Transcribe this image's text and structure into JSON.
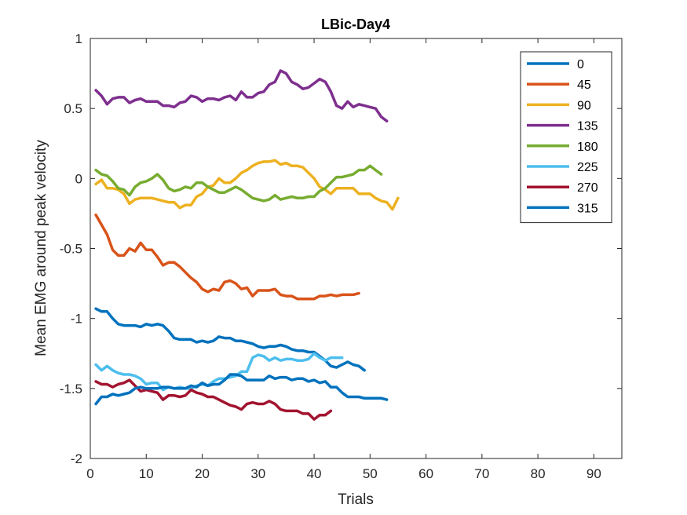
{
  "chart_data": {
    "type": "line",
    "title": "LBic-Day4",
    "xlabel": "Trials",
    "ylabel": "Mean EMG around peak velocity",
    "xlim": [
      0,
      95
    ],
    "ylim": [
      -2,
      1
    ],
    "xticks": [
      0,
      10,
      20,
      30,
      40,
      50,
      60,
      70,
      80,
      90
    ],
    "yticks": [
      -2,
      -1.5,
      -1,
      -0.5,
      0,
      0.5,
      1
    ],
    "grid": false,
    "legend_position": "top-right",
    "series": [
      {
        "name": "0",
        "color": "#0072BD",
        "x": [
          1,
          2,
          3,
          4,
          5,
          6,
          7,
          8,
          9,
          10,
          11,
          12,
          13,
          14,
          15,
          16,
          17,
          18,
          19,
          20,
          21,
          22,
          23,
          24,
          25,
          26,
          27,
          28,
          29,
          30,
          31,
          32,
          33,
          34,
          35,
          36,
          37,
          38,
          39,
          40,
          41,
          42,
          43,
          44,
          45,
          46,
          47,
          48,
          49
        ],
        "y": [
          -0.93,
          -0.95,
          -0.95,
          -1.0,
          -1.04,
          -1.05,
          -1.05,
          -1.05,
          -1.06,
          -1.04,
          -1.05,
          -1.04,
          -1.05,
          -1.09,
          -1.14,
          -1.15,
          -1.15,
          -1.15,
          -1.17,
          -1.16,
          -1.17,
          -1.16,
          -1.13,
          -1.14,
          -1.14,
          -1.16,
          -1.16,
          -1.17,
          -1.18,
          -1.2,
          -1.21,
          -1.2,
          -1.2,
          -1.19,
          -1.2,
          -1.22,
          -1.23,
          -1.23,
          -1.24,
          -1.24,
          -1.27,
          -1.3,
          -1.34,
          -1.35,
          -1.33,
          -1.31,
          -1.33,
          -1.34,
          -1.37
        ]
      },
      {
        "name": "45",
        "color": "#D95319",
        "x": [
          1,
          2,
          3,
          4,
          5,
          6,
          7,
          8,
          9,
          10,
          11,
          12,
          13,
          14,
          15,
          16,
          17,
          18,
          19,
          20,
          21,
          22,
          23,
          24,
          25,
          26,
          27,
          28,
          29,
          30,
          31,
          32,
          33,
          34,
          35,
          36,
          37,
          38,
          39,
          40,
          41,
          42,
          43,
          44,
          45,
          46,
          47,
          48
        ],
        "y": [
          -0.26,
          -0.33,
          -0.4,
          -0.51,
          -0.55,
          -0.55,
          -0.5,
          -0.52,
          -0.46,
          -0.51,
          -0.51,
          -0.56,
          -0.62,
          -0.6,
          -0.6,
          -0.63,
          -0.67,
          -0.71,
          -0.74,
          -0.79,
          -0.81,
          -0.79,
          -0.8,
          -0.74,
          -0.73,
          -0.75,
          -0.79,
          -0.78,
          -0.84,
          -0.8,
          -0.8,
          -0.8,
          -0.79,
          -0.83,
          -0.84,
          -0.84,
          -0.86,
          -0.86,
          -0.86,
          -0.86,
          -0.84,
          -0.84,
          -0.83,
          -0.84,
          -0.83,
          -0.83,
          -0.83,
          -0.82
        ]
      },
      {
        "name": "90",
        "color": "#EDB120",
        "x": [
          1,
          2,
          3,
          4,
          5,
          6,
          7,
          8,
          9,
          10,
          11,
          12,
          13,
          14,
          15,
          16,
          17,
          18,
          19,
          20,
          21,
          22,
          23,
          24,
          25,
          26,
          27,
          28,
          29,
          30,
          31,
          32,
          33,
          34,
          35,
          36,
          37,
          38,
          39,
          40,
          41,
          42,
          43,
          44,
          45,
          46,
          47,
          48,
          49,
          50,
          51,
          52,
          53,
          54,
          55
        ],
        "y": [
          -0.04,
          -0.01,
          -0.07,
          -0.07,
          -0.08,
          -0.11,
          -0.18,
          -0.15,
          -0.14,
          -0.14,
          -0.14,
          -0.15,
          -0.16,
          -0.17,
          -0.17,
          -0.21,
          -0.19,
          -0.19,
          -0.13,
          -0.11,
          -0.06,
          -0.05,
          0.0,
          -0.03,
          -0.03,
          0.0,
          0.04,
          0.06,
          0.09,
          0.11,
          0.12,
          0.12,
          0.13,
          0.1,
          0.11,
          0.09,
          0.09,
          0.08,
          0.04,
          0.0,
          -0.06,
          -0.08,
          -0.11,
          -0.07,
          -0.07,
          -0.07,
          -0.07,
          -0.11,
          -0.11,
          -0.11,
          -0.14,
          -0.16,
          -0.17,
          -0.22,
          -0.14
        ]
      },
      {
        "name": "135",
        "color": "#7E2F8E",
        "x": [
          1,
          2,
          3,
          4,
          5,
          6,
          7,
          8,
          9,
          10,
          11,
          12,
          13,
          14,
          15,
          16,
          17,
          18,
          19,
          20,
          21,
          22,
          23,
          24,
          25,
          26,
          27,
          28,
          29,
          30,
          31,
          32,
          33,
          34,
          35,
          36,
          37,
          38,
          39,
          40,
          41,
          42,
          43,
          44,
          45,
          46,
          47,
          48,
          49,
          50,
          51,
          52,
          53
        ],
        "y": [
          0.63,
          0.59,
          0.53,
          0.57,
          0.58,
          0.58,
          0.54,
          0.56,
          0.57,
          0.55,
          0.55,
          0.55,
          0.52,
          0.52,
          0.51,
          0.54,
          0.55,
          0.59,
          0.58,
          0.55,
          0.57,
          0.57,
          0.56,
          0.58,
          0.59,
          0.56,
          0.62,
          0.58,
          0.58,
          0.61,
          0.62,
          0.67,
          0.69,
          0.77,
          0.75,
          0.69,
          0.67,
          0.64,
          0.65,
          0.68,
          0.71,
          0.69,
          0.62,
          0.52,
          0.5,
          0.55,
          0.51,
          0.53,
          0.52,
          0.51,
          0.5,
          0.44,
          0.41
        ]
      },
      {
        "name": "180",
        "color": "#77AC30",
        "x": [
          1,
          2,
          3,
          4,
          5,
          6,
          7,
          8,
          9,
          10,
          11,
          12,
          13,
          14,
          15,
          16,
          17,
          18,
          19,
          20,
          21,
          22,
          23,
          24,
          25,
          26,
          27,
          28,
          29,
          30,
          31,
          32,
          33,
          34,
          35,
          36,
          37,
          38,
          39,
          40,
          41,
          42,
          43,
          44,
          45,
          46,
          47,
          48,
          49,
          50,
          51,
          52
        ],
        "y": [
          0.06,
          0.03,
          0.02,
          -0.02,
          -0.07,
          -0.08,
          -0.12,
          -0.06,
          -0.03,
          -0.02,
          0.0,
          0.03,
          -0.01,
          -0.07,
          -0.09,
          -0.08,
          -0.06,
          -0.07,
          -0.03,
          -0.03,
          -0.06,
          -0.08,
          -0.1,
          -0.1,
          -0.08,
          -0.06,
          -0.08,
          -0.11,
          -0.14,
          -0.15,
          -0.16,
          -0.15,
          -0.12,
          -0.15,
          -0.14,
          -0.13,
          -0.14,
          -0.14,
          -0.13,
          -0.13,
          -0.09,
          -0.07,
          -0.03,
          0.01,
          0.01,
          0.02,
          0.03,
          0.06,
          0.06,
          0.09,
          0.06,
          0.03
        ]
      },
      {
        "name": "225",
        "color": "#4DBEEE",
        "x": [
          1,
          2,
          3,
          4,
          5,
          6,
          7,
          8,
          9,
          10,
          11,
          12,
          13,
          14,
          15,
          16,
          17,
          18,
          19,
          20,
          21,
          22,
          23,
          24,
          25,
          26,
          27,
          28,
          29,
          30,
          31,
          32,
          33,
          34,
          35,
          36,
          37,
          38,
          39,
          40,
          41,
          42,
          43,
          44,
          45
        ],
        "y": [
          -1.33,
          -1.37,
          -1.34,
          -1.37,
          -1.39,
          -1.4,
          -1.4,
          -1.41,
          -1.43,
          -1.47,
          -1.46,
          -1.46,
          -1.51,
          -1.49,
          -1.5,
          -1.49,
          -1.5,
          -1.5,
          -1.48,
          -1.47,
          -1.48,
          -1.45,
          -1.43,
          -1.43,
          -1.42,
          -1.41,
          -1.38,
          -1.38,
          -1.28,
          -1.26,
          -1.27,
          -1.3,
          -1.28,
          -1.3,
          -1.29,
          -1.29,
          -1.3,
          -1.3,
          -1.29,
          -1.25,
          -1.28,
          -1.3,
          -1.28,
          -1.28,
          -1.28
        ]
      },
      {
        "name": "270",
        "color": "#A2142F",
        "x": [
          1,
          2,
          3,
          4,
          5,
          6,
          7,
          8,
          9,
          10,
          11,
          12,
          13,
          14,
          15,
          16,
          17,
          18,
          19,
          20,
          21,
          22,
          23,
          24,
          25,
          26,
          27,
          28,
          29,
          30,
          31,
          32,
          33,
          34,
          35,
          36,
          37,
          38,
          39,
          40,
          41,
          42,
          43
        ],
        "y": [
          -1.45,
          -1.47,
          -1.47,
          -1.49,
          -1.47,
          -1.46,
          -1.44,
          -1.48,
          -1.52,
          -1.51,
          -1.52,
          -1.53,
          -1.58,
          -1.55,
          -1.55,
          -1.56,
          -1.55,
          -1.51,
          -1.53,
          -1.54,
          -1.56,
          -1.56,
          -1.58,
          -1.6,
          -1.62,
          -1.63,
          -1.65,
          -1.61,
          -1.6,
          -1.61,
          -1.61,
          -1.59,
          -1.61,
          -1.65,
          -1.66,
          -1.66,
          -1.66,
          -1.68,
          -1.68,
          -1.72,
          -1.69,
          -1.69,
          -1.66
        ]
      },
      {
        "name": "315",
        "color": "#0072BD",
        "x": [
          1,
          2,
          3,
          4,
          5,
          6,
          7,
          8,
          9,
          10,
          11,
          12,
          13,
          14,
          15,
          16,
          17,
          18,
          19,
          20,
          21,
          22,
          23,
          24,
          25,
          26,
          27,
          28,
          29,
          30,
          31,
          32,
          33,
          34,
          35,
          36,
          37,
          38,
          39,
          40,
          41,
          42,
          43,
          44,
          45,
          46,
          47,
          48,
          49,
          50,
          51,
          52,
          53
        ],
        "y": [
          -1.61,
          -1.56,
          -1.56,
          -1.54,
          -1.55,
          -1.54,
          -1.53,
          -1.5,
          -1.49,
          -1.5,
          -1.5,
          -1.5,
          -1.49,
          -1.49,
          -1.5,
          -1.5,
          -1.5,
          -1.48,
          -1.49,
          -1.46,
          -1.48,
          -1.47,
          -1.47,
          -1.44,
          -1.4,
          -1.4,
          -1.41,
          -1.44,
          -1.44,
          -1.44,
          -1.44,
          -1.41,
          -1.43,
          -1.42,
          -1.42,
          -1.44,
          -1.43,
          -1.43,
          -1.45,
          -1.44,
          -1.46,
          -1.45,
          -1.49,
          -1.49,
          -1.53,
          -1.56,
          -1.56,
          -1.56,
          -1.57,
          -1.57,
          -1.57,
          -1.57,
          -1.58
        ]
      }
    ]
  }
}
